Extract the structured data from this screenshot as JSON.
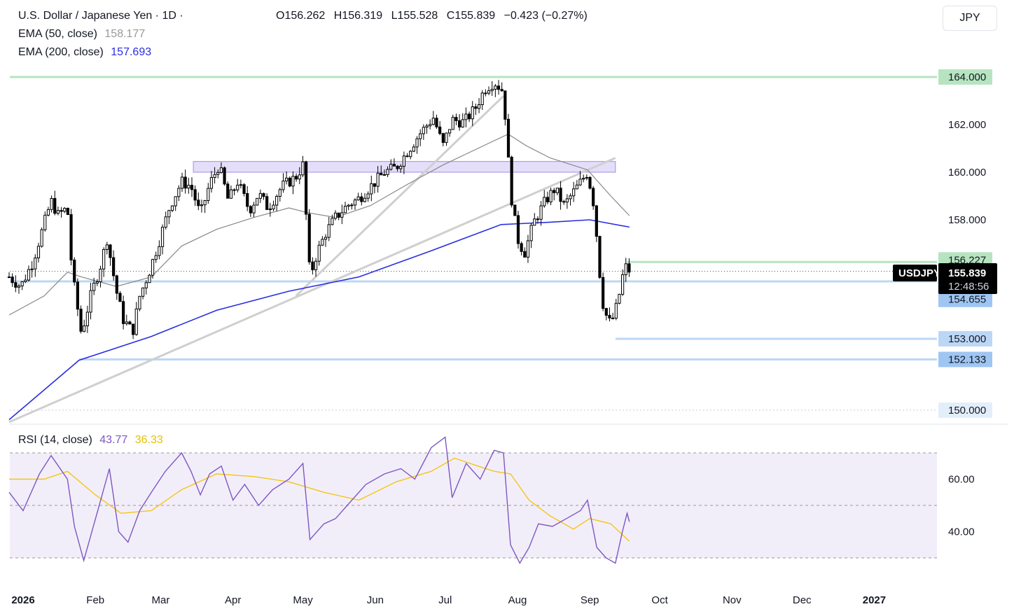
{
  "header": {
    "symbol_title": "U.S. Dollar / Japanese Yen · 1D ·",
    "ohlc": {
      "open": "O156.262",
      "high": "H156.319",
      "low": "L155.528",
      "close": "C155.839",
      "change": "−0.423 (−0.27%)"
    },
    "currency_button": "JPY"
  },
  "indicators": {
    "ema50": {
      "label": "EMA (50, close)",
      "value": "158.177",
      "color": "#888888"
    },
    "ema200": {
      "label": "EMA (200, close)",
      "value": "157.693",
      "color": "#2a2ee0"
    },
    "rsi": {
      "label": "RSI (14, close)",
      "value": "43.77",
      "ma_value": "36.33",
      "color": "#7e57c2",
      "ma_color": "#f5c518"
    }
  },
  "price_scale": {
    "ticks": [
      "164.000",
      "162.000",
      "160.000",
      "158.000",
      "156.227",
      "155.411",
      "154.655",
      "153.000",
      "152.133",
      "150.000"
    ],
    "current": {
      "symbol": "USDJPY",
      "price": "155.839",
      "countdown": "12:48:56"
    }
  },
  "rsi_scale": {
    "ticks": [
      "60.00",
      "40.00"
    ]
  },
  "time_axis": [
    "2026",
    "Feb",
    "Mar",
    "Apr",
    "May",
    "Jun",
    "Jul",
    "Aug",
    "Sep",
    "Oct",
    "Nov",
    "Dec",
    "2027"
  ],
  "chart_data": {
    "type": "candlestick",
    "y_axis_range": [
      149.5,
      165.0
    ],
    "horizontal_levels": [
      164.0,
      156.227,
      155.411,
      154.655,
      153.0,
      152.133
    ],
    "resistance_zone": {
      "from": 160.0,
      "to": 160.45,
      "start": "2026-03-15",
      "end": "2026-09-12"
    },
    "close_path": [
      [
        "2025-12-26",
        155.6
      ],
      [
        "2025-12-31",
        155.2
      ],
      [
        "2026-01-05",
        156.2
      ],
      [
        "2026-01-09",
        157.5
      ],
      [
        "2026-01-13",
        158.8
      ],
      [
        "2026-01-16",
        158.2
      ],
      [
        "2026-01-20",
        158.5
      ],
      [
        "2026-01-22",
        155.8
      ],
      [
        "2026-01-26",
        153.2
      ],
      [
        "2026-01-30",
        154.8
      ],
      [
        "2026-02-03",
        156.0
      ],
      [
        "2026-02-06",
        157.2
      ],
      [
        "2026-02-10",
        155.0
      ],
      [
        "2026-02-13",
        153.8
      ],
      [
        "2026-02-17",
        153.3
      ],
      [
        "2026-02-20",
        154.8
      ],
      [
        "2026-02-24",
        155.8
      ],
      [
        "2026-02-28",
        157.0
      ],
      [
        "2026-03-05",
        158.6
      ],
      [
        "2026-03-10",
        159.6
      ],
      [
        "2026-03-14",
        159.4
      ],
      [
        "2026-03-18",
        158.2
      ],
      [
        "2026-03-22",
        159.5
      ],
      [
        "2026-03-26",
        160.3
      ],
      [
        "2026-03-30",
        158.8
      ],
      [
        "2026-04-03",
        159.6
      ],
      [
        "2026-04-08",
        158.4
      ],
      [
        "2026-04-12",
        159.1
      ],
      [
        "2026-04-16",
        158.5
      ],
      [
        "2026-04-22",
        159.4
      ],
      [
        "2026-04-28",
        159.8
      ],
      [
        "2026-05-01",
        160.3
      ],
      [
        "2026-05-04",
        155.6
      ],
      [
        "2026-05-07",
        156.6
      ],
      [
        "2026-05-11",
        157.5
      ],
      [
        "2026-05-15",
        158.1
      ],
      [
        "2026-05-20",
        158.6
      ],
      [
        "2026-05-25",
        158.9
      ],
      [
        "2026-05-30",
        159.4
      ],
      [
        "2026-06-05",
        160.0
      ],
      [
        "2026-06-10",
        160.2
      ],
      [
        "2026-06-15",
        160.9
      ],
      [
        "2026-06-20",
        161.6
      ],
      [
        "2026-06-26",
        162.3
      ],
      [
        "2026-06-30",
        161.1
      ],
      [
        "2026-07-04",
        162.2
      ],
      [
        "2026-07-09",
        162.1
      ],
      [
        "2026-07-14",
        162.7
      ],
      [
        "2026-07-18",
        163.5
      ],
      [
        "2026-07-22",
        163.8
      ],
      [
        "2026-07-26",
        163.4
      ],
      [
        "2026-07-29",
        159.2
      ],
      [
        "2026-08-01",
        157.2
      ],
      [
        "2026-08-04",
        156.6
      ],
      [
        "2026-08-08",
        157.9
      ],
      [
        "2026-08-13",
        158.8
      ],
      [
        "2026-08-17",
        159.3
      ],
      [
        "2026-08-21",
        158.6
      ],
      [
        "2026-08-26",
        159.3
      ],
      [
        "2026-08-31",
        160.0
      ],
      [
        "2026-09-03",
        158.5
      ],
      [
        "2026-09-05",
        156.0
      ],
      [
        "2026-09-07",
        154.2
      ],
      [
        "2026-09-10",
        153.6
      ],
      [
        "2026-09-13",
        154.5
      ],
      [
        "2026-09-15",
        155.6
      ],
      [
        "2026-09-17",
        156.15
      ],
      [
        "2026-09-18",
        155.839
      ]
    ],
    "ema50_path": [
      [
        "2025-12-26",
        154.0
      ],
      [
        "2026-01-10",
        154.8
      ],
      [
        "2026-01-20",
        155.8
      ],
      [
        "2026-01-26",
        155.6
      ],
      [
        "2026-02-10",
        155.2
      ],
      [
        "2026-02-25",
        155.6
      ],
      [
        "2026-03-10",
        156.9
      ],
      [
        "2026-03-25",
        157.6
      ],
      [
        "2026-04-10",
        158.1
      ],
      [
        "2026-04-25",
        158.5
      ],
      [
        "2026-05-03",
        158.3
      ],
      [
        "2026-05-15",
        158.1
      ],
      [
        "2026-05-30",
        158.6
      ],
      [
        "2026-06-15",
        159.5
      ],
      [
        "2026-06-30",
        160.3
      ],
      [
        "2026-07-15",
        161.0
      ],
      [
        "2026-07-28",
        161.6
      ],
      [
        "2026-08-05",
        161.1
      ],
      [
        "2026-08-15",
        160.6
      ],
      [
        "2026-08-31",
        160.1
      ],
      [
        "2026-09-10",
        159.0
      ],
      [
        "2026-09-18",
        158.177
      ]
    ],
    "ema200_path": [
      [
        "2025-12-26",
        149.6
      ],
      [
        "2026-01-25",
        152.1
      ],
      [
        "2026-02-25",
        153.1
      ],
      [
        "2026-03-25",
        154.2
      ],
      [
        "2026-04-25",
        155.0
      ],
      [
        "2026-05-25",
        155.6
      ],
      [
        "2026-06-25",
        156.7
      ],
      [
        "2026-07-25",
        157.8
      ],
      [
        "2026-08-15",
        157.9
      ],
      [
        "2026-09-01",
        158.0
      ],
      [
        "2026-09-18",
        157.693
      ]
    ],
    "trendlines": [
      [
        [
          "2025-12-26",
          149.5
        ],
        [
          "2026-09-12",
          160.6
        ]
      ],
      [
        [
          "2026-04-28",
          154.8
        ],
        [
          "2026-07-26",
          163.2
        ]
      ]
    ],
    "rsi": {
      "range": [
        25,
        80
      ],
      "levels": [
        70,
        50,
        30
      ],
      "rsi_path": [
        [
          "2025-12-26",
          55
        ],
        [
          "2026-01-01",
          48
        ],
        [
          "2026-01-08",
          62
        ],
        [
          "2026-01-13",
          69
        ],
        [
          "2026-01-20",
          60
        ],
        [
          "2026-01-23",
          42
        ],
        [
          "2026-01-27",
          29
        ],
        [
          "2026-02-02",
          48
        ],
        [
          "2026-02-07",
          64
        ],
        [
          "2026-02-11",
          40
        ],
        [
          "2026-02-15",
          36
        ],
        [
          "2026-02-20",
          48
        ],
        [
          "2026-02-25",
          55
        ],
        [
          "2026-03-03",
          63
        ],
        [
          "2026-03-10",
          70
        ],
        [
          "2026-03-14",
          63
        ],
        [
          "2026-03-18",
          54
        ],
        [
          "2026-03-22",
          62
        ],
        [
          "2026-03-27",
          65
        ],
        [
          "2026-04-01",
          52
        ],
        [
          "2026-04-06",
          58
        ],
        [
          "2026-04-12",
          50
        ],
        [
          "2026-04-18",
          56
        ],
        [
          "2026-04-25",
          60
        ],
        [
          "2026-05-01",
          66
        ],
        [
          "2026-05-04",
          37
        ],
        [
          "2026-05-10",
          43
        ],
        [
          "2026-05-15",
          45
        ],
        [
          "2026-05-22",
          52
        ],
        [
          "2026-05-28",
          58
        ],
        [
          "2026-06-05",
          62
        ],
        [
          "2026-06-12",
          64
        ],
        [
          "2026-06-18",
          60
        ],
        [
          "2026-06-25",
          72
        ],
        [
          "2026-07-01",
          76
        ],
        [
          "2026-07-04",
          53
        ],
        [
          "2026-07-10",
          66
        ],
        [
          "2026-07-16",
          60
        ],
        [
          "2026-07-22",
          71
        ],
        [
          "2026-07-26",
          70
        ],
        [
          "2026-07-29",
          35
        ],
        [
          "2026-08-02",
          28
        ],
        [
          "2026-08-06",
          34
        ],
        [
          "2026-08-10",
          43
        ],
        [
          "2026-08-16",
          42
        ],
        [
          "2026-08-22",
          45
        ],
        [
          "2026-08-28",
          48
        ],
        [
          "2026-08-31",
          52
        ],
        [
          "2026-09-04",
          34
        ],
        [
          "2026-09-08",
          30
        ],
        [
          "2026-09-12",
          28
        ],
        [
          "2026-09-15",
          40
        ],
        [
          "2026-09-17",
          47
        ],
        [
          "2026-09-18",
          43.77
        ]
      ],
      "ma_path": [
        [
          "2025-12-26",
          60
        ],
        [
          "2026-01-10",
          60
        ],
        [
          "2026-01-20",
          63
        ],
        [
          "2026-02-01",
          54
        ],
        [
          "2026-02-12",
          47
        ],
        [
          "2026-02-25",
          48
        ],
        [
          "2026-03-10",
          56
        ],
        [
          "2026-03-25",
          62
        ],
        [
          "2026-04-10",
          61
        ],
        [
          "2026-04-25",
          59
        ],
        [
          "2026-05-10",
          55
        ],
        [
          "2026-05-25",
          52
        ],
        [
          "2026-06-10",
          59
        ],
        [
          "2026-06-25",
          63
        ],
        [
          "2026-07-05",
          68
        ],
        [
          "2026-07-15",
          65
        ],
        [
          "2026-07-22",
          63
        ],
        [
          "2026-07-29",
          62
        ],
        [
          "2026-08-06",
          52
        ],
        [
          "2026-08-15",
          46
        ],
        [
          "2026-08-25",
          41
        ],
        [
          "2026-09-01",
          45
        ],
        [
          "2026-09-10",
          43
        ],
        [
          "2026-09-18",
          36.33
        ]
      ]
    }
  }
}
